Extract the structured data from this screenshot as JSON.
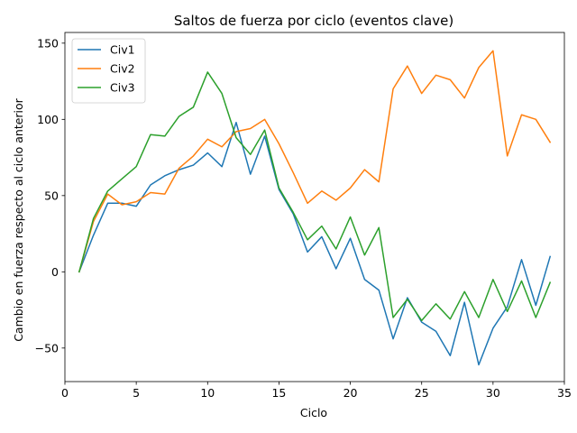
{
  "chart_data": {
    "type": "line",
    "title": "Saltos de fuerza por ciclo (eventos clave)",
    "xlabel": "Ciclo",
    "ylabel": "Cambio en fuerza respecto al ciclo anterior",
    "xlim": [
      0,
      35
    ],
    "ylim": [
      -72,
      157
    ],
    "xticks": [
      0,
      5,
      10,
      15,
      20,
      25,
      30,
      35
    ],
    "yticks": [
      -50,
      0,
      50,
      100,
      150
    ],
    "grid": false,
    "legend_position": "upper-left",
    "x": [
      1,
      2,
      3,
      4,
      5,
      6,
      7,
      8,
      9,
      10,
      11,
      12,
      13,
      14,
      15,
      16,
      17,
      18,
      19,
      20,
      21,
      22,
      23,
      24,
      25,
      26,
      27,
      28,
      29,
      30,
      31,
      32,
      33,
      34
    ],
    "series": [
      {
        "name": "Civ1",
        "color": "#1f77b4",
        "values": [
          0,
          24,
          45,
          45,
          43,
          57,
          63,
          67,
          70,
          78,
          69,
          98,
          64,
          89,
          54,
          38,
          13,
          23,
          2,
          22,
          -5,
          -12,
          -44,
          -17,
          -33,
          -39,
          -55,
          -20,
          -61,
          -37,
          -23,
          8,
          -22,
          10
        ]
      },
      {
        "name": "Civ2",
        "color": "#ff7f0e",
        "values": [
          0,
          33,
          51,
          44,
          46,
          52,
          51,
          68,
          76,
          87,
          82,
          92,
          94,
          100,
          84,
          65,
          45,
          53,
          47,
          55,
          67,
          59,
          120,
          135,
          117,
          129,
          126,
          114,
          134,
          145,
          76,
          103,
          100,
          85
        ]
      },
      {
        "name": "Civ3",
        "color": "#2ca02c",
        "values": [
          0,
          35,
          53,
          61,
          69,
          90,
          89,
          102,
          108,
          131,
          117,
          88,
          77,
          93,
          55,
          39,
          21,
          30,
          15,
          36,
          11,
          29,
          -30,
          -18,
          -32,
          -21,
          -31,
          -13,
          -30,
          -5,
          -26,
          -6,
          -30,
          -7
        ]
      }
    ]
  }
}
